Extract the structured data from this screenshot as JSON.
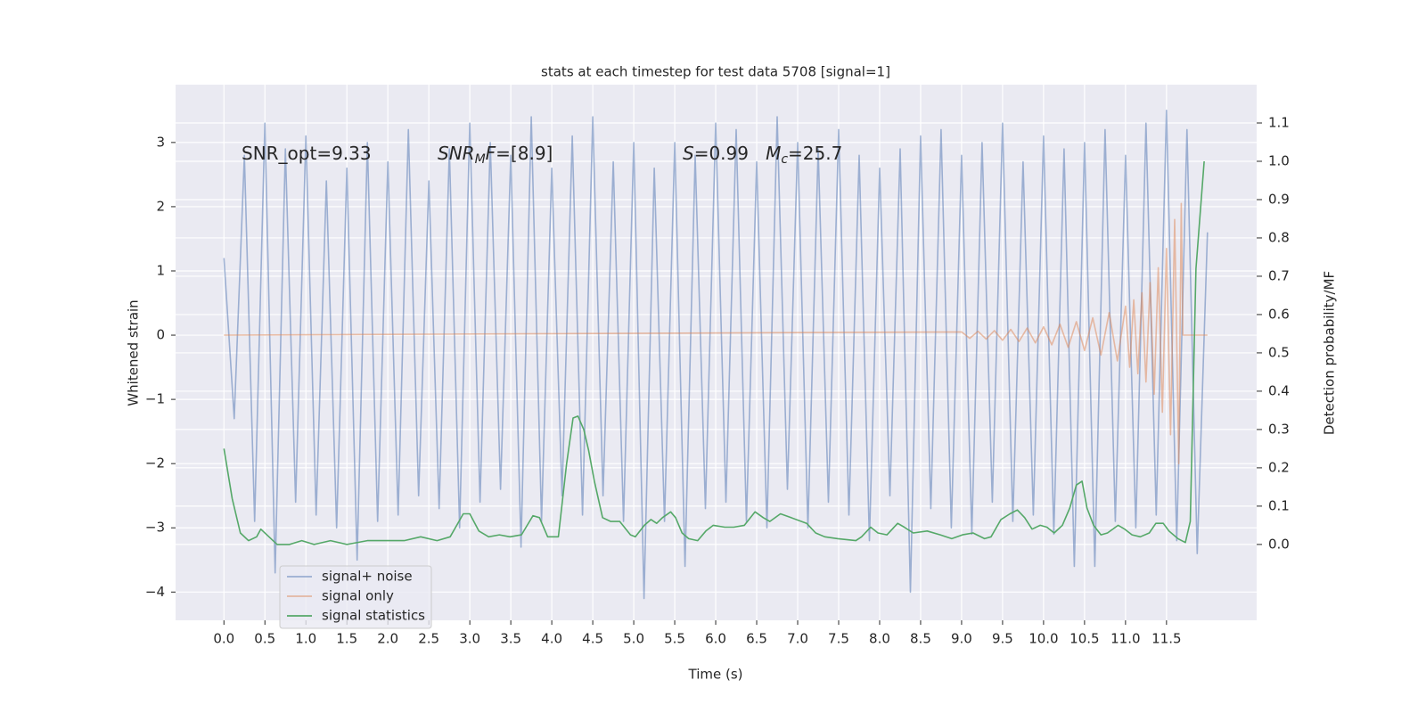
{
  "chart_data": {
    "type": "line",
    "title": "stats at each timestep for test data 5708 [signal=1]",
    "xlabel": "Time (s)",
    "ylabel": "Whitened strain",
    "y2label": "Detection probability/MF",
    "xlim": [
      -0.59,
      12.6
    ],
    "ylim": [
      -4.44,
      3.9
    ],
    "y2lim": [
      -0.198,
      1.2
    ],
    "grid": true,
    "legend": "lower left",
    "xticks": [
      {
        "value": 0,
        "label": "0.0"
      },
      {
        "value": 0.5,
        "label": "0.5"
      },
      {
        "value": 1,
        "label": "1.0"
      },
      {
        "value": 1.5,
        "label": "1.5"
      },
      {
        "value": 2,
        "label": "2.0"
      },
      {
        "value": 2.5,
        "label": "2.5"
      },
      {
        "value": 3,
        "label": "3.0"
      },
      {
        "value": 3.5,
        "label": "3.5"
      },
      {
        "value": 4,
        "label": "4.0"
      },
      {
        "value": 4.5,
        "label": "4.5"
      },
      {
        "value": 5,
        "label": "5.0"
      },
      {
        "value": 5.5,
        "label": "5.5"
      },
      {
        "value": 6,
        "label": "6.0"
      },
      {
        "value": 6.5,
        "label": "6.5"
      },
      {
        "value": 7,
        "label": "7.0"
      },
      {
        "value": 7.5,
        "label": "7.5"
      },
      {
        "value": 8,
        "label": "8.0"
      },
      {
        "value": 8.5,
        "label": "8.5"
      },
      {
        "value": 9,
        "label": "9.0"
      },
      {
        "value": 9.5,
        "label": "9.5"
      },
      {
        "value": 10,
        "label": "10.0"
      },
      {
        "value": 10.5,
        "label": "10.5"
      },
      {
        "value": 11,
        "label": "11.0"
      },
      {
        "value": 11.5,
        "label": "11.5"
      }
    ],
    "yticks": [
      {
        "value": -4,
        "label": "−4"
      },
      {
        "value": -3,
        "label": "−3"
      },
      {
        "value": -2,
        "label": "−2"
      },
      {
        "value": -1,
        "label": "−1"
      },
      0,
      1,
      2,
      3
    ],
    "y2ticks": [
      {
        "value": 0,
        "label": "0.0"
      },
      {
        "value": 0.1,
        "label": "0.1"
      },
      {
        "value": 0.2,
        "label": "0.2"
      },
      {
        "value": 0.3,
        "label": "0.3"
      },
      {
        "value": 0.4,
        "label": "0.4"
      },
      {
        "value": 0.5,
        "label": "0.5"
      },
      {
        "value": 0.6,
        "label": "0.6"
      },
      {
        "value": 0.7,
        "label": "0.7"
      },
      {
        "value": 0.8,
        "label": "0.8"
      },
      {
        "value": 0.9,
        "label": "0.9"
      },
      {
        "value": 1,
        "label": "1.0"
      },
      {
        "value": 1.1,
        "label": "1.1"
      }
    ],
    "annotations": [
      [
        {
          "text": "SNR_opt=9.33"
        }
      ],
      [
        {
          "text": "SNR",
          "italic": true
        },
        {
          "text": "M",
          "italic": true,
          "sub": true
        },
        {
          "text": "F",
          "italic": true
        },
        {
          "text": "=[8.9]"
        }
      ],
      [
        {
          "text": "S",
          "italic": true
        },
        {
          "text": "=0.99   "
        },
        {
          "text": "M",
          "italic": true
        },
        {
          "text": "c",
          "italic": true,
          "sub": true
        },
        {
          "text": "=25.7"
        }
      ]
    ],
    "series": [
      {
        "name": "signal+ noise",
        "color": "#4c72b0",
        "alpha": 0.5,
        "x": [
          0,
          0.125,
          0.25,
          0.375,
          0.5,
          0.625,
          0.75,
          0.875,
          1,
          1.125,
          1.25,
          1.375,
          1.5,
          1.625,
          1.75,
          1.875,
          2,
          2.125,
          2.25,
          2.375,
          2.5,
          2.625,
          2.75,
          2.875,
          3,
          3.125,
          3.25,
          3.375,
          3.5,
          3.625,
          3.75,
          3.875,
          4,
          4.125,
          4.25,
          4.375,
          4.5,
          4.625,
          4.75,
          4.875,
          5,
          5.125,
          5.25,
          5.375,
          5.5,
          5.625,
          5.75,
          5.875,
          6,
          6.125,
          6.25,
          6.375,
          6.5,
          6.625,
          6.75,
          6.875,
          7,
          7.125,
          7.25,
          7.375,
          7.5,
          7.625,
          7.75,
          7.875,
          8,
          8.125,
          8.25,
          8.375,
          8.5,
          8.625,
          8.75,
          8.875,
          9,
          9.125,
          9.25,
          9.375,
          9.5,
          9.625,
          9.75,
          9.875,
          10,
          10.125,
          10.25,
          10.375,
          10.5,
          10.625,
          10.75,
          10.875,
          11,
          11.125,
          11.25,
          11.375,
          11.5,
          11.625,
          11.75,
          11.875,
          12
        ],
        "values": [
          1.2,
          -1.3,
          2.8,
          -2.9,
          3.3,
          -3.7,
          2.9,
          -2.6,
          3.1,
          -2.8,
          2.4,
          -3.0,
          2.6,
          -3.5,
          3.0,
          -2.9,
          2.7,
          -2.8,
          3.2,
          -2.5,
          2.4,
          -2.7,
          2.9,
          -3.0,
          3.3,
          -2.6,
          3.0,
          -2.4,
          2.8,
          -3.3,
          3.4,
          -2.9,
          2.6,
          -2.5,
          3.1,
          -2.8,
          3.4,
          -2.5,
          2.7,
          -2.9,
          3.0,
          -4.1,
          2.6,
          -2.9,
          3.0,
          -3.6,
          2.8,
          -2.7,
          3.3,
          -2.6,
          3.2,
          -2.9,
          2.7,
          -3.0,
          3.4,
          -2.4,
          3.0,
          -3.0,
          2.9,
          -2.6,
          3.2,
          -2.8,
          2.8,
          -3.2,
          2.6,
          -2.5,
          2.9,
          -4.0,
          3.1,
          -2.7,
          3.2,
          -3.0,
          2.8,
          -3.1,
          3.0,
          -2.6,
          3.3,
          -2.9,
          2.7,
          -2.8,
          3.1,
          -3.1,
          2.9,
          -3.6,
          3.0,
          -3.6,
          3.2,
          -2.9,
          2.8,
          -3.0,
          3.3,
          -2.8,
          3.5,
          -3.2,
          3.2,
          -3.4,
          1.6
        ]
      },
      {
        "name": "signal only",
        "color": "#dd8452",
        "alpha": 0.5,
        "x": [
          0,
          9.0,
          9.1,
          9.2,
          9.3,
          9.4,
          9.5,
          9.6,
          9.7,
          9.8,
          9.9,
          10.0,
          10.1,
          10.2,
          10.3,
          10.4,
          10.5,
          10.6,
          10.7,
          10.8,
          10.9,
          11.0,
          11.05,
          11.1,
          11.15,
          11.2,
          11.25,
          11.3,
          11.35,
          11.4,
          11.45,
          11.5,
          11.55,
          11.6,
          11.65,
          11.68,
          11.7,
          12.0
        ],
        "values": [
          0,
          0.05,
          -0.05,
          0.06,
          -0.06,
          0.07,
          -0.08,
          0.09,
          -0.1,
          0.11,
          -0.12,
          0.13,
          -0.15,
          0.17,
          -0.19,
          0.21,
          -0.24,
          0.27,
          -0.31,
          0.35,
          -0.4,
          0.45,
          -0.5,
          0.55,
          -0.6,
          0.66,
          -0.73,
          0.82,
          -0.92,
          1.05,
          -1.2,
          1.35,
          -1.55,
          1.8,
          -2.0,
          2.05,
          0,
          0
        ]
      },
      {
        "name": "signal statistics",
        "color": "#55a868",
        "axis": "y2",
        "x": [
          0,
          0.1,
          0.2,
          0.3,
          0.4,
          0.45,
          0.55,
          0.65,
          0.8,
          0.95,
          1.1,
          1.3,
          1.5,
          1.75,
          2.0,
          2.2,
          2.4,
          2.6,
          2.76,
          2.92,
          3.0,
          3.11,
          3.23,
          3.36,
          3.49,
          3.63,
          3.77,
          3.85,
          3.95,
          4.08,
          4.18,
          4.26,
          4.32,
          4.39,
          4.45,
          4.52,
          4.62,
          4.72,
          4.83,
          4.96,
          5.02,
          5.13,
          5.21,
          5.28,
          5.35,
          5.45,
          5.51,
          5.59,
          5.67,
          5.78,
          5.88,
          5.97,
          6.11,
          6.22,
          6.35,
          6.48,
          6.58,
          6.66,
          6.79,
          6.92,
          7.11,
          7.22,
          7.33,
          7.49,
          7.71,
          7.78,
          7.89,
          7.98,
          8.09,
          8.22,
          8.3,
          8.41,
          8.58,
          8.74,
          8.88,
          9.01,
          9.14,
          9.28,
          9.36,
          9.48,
          9.59,
          9.68,
          9.77,
          9.86,
          9.96,
          10.04,
          10.13,
          10.23,
          10.32,
          10.4,
          10.47,
          10.53,
          10.61,
          10.7,
          10.78,
          10.91,
          10.99,
          11.08,
          11.18,
          11.29,
          11.37,
          11.46,
          11.53,
          11.64,
          11.73,
          11.79,
          11.86,
          11.96
        ],
        "values": [
          0.25,
          0.12,
          0.03,
          0.01,
          0.02,
          0.04,
          0.02,
          0.0,
          0.0,
          0.01,
          0.0,
          0.01,
          0.0,
          0.01,
          0.01,
          0.01,
          0.02,
          0.01,
          0.02,
          0.08,
          0.08,
          0.035,
          0.02,
          0.025,
          0.02,
          0.025,
          0.075,
          0.07,
          0.02,
          0.02,
          0.21,
          0.33,
          0.335,
          0.3,
          0.245,
          0.165,
          0.07,
          0.06,
          0.06,
          0.025,
          0.02,
          0.05,
          0.065,
          0.055,
          0.07,
          0.085,
          0.07,
          0.03,
          0.015,
          0.01,
          0.035,
          0.05,
          0.045,
          0.045,
          0.05,
          0.085,
          0.07,
          0.06,
          0.08,
          0.07,
          0.055,
          0.03,
          0.02,
          0.015,
          0.01,
          0.02,
          0.045,
          0.03,
          0.025,
          0.055,
          0.045,
          0.03,
          0.035,
          0.025,
          0.015,
          0.025,
          0.03,
          0.015,
          0.02,
          0.065,
          0.08,
          0.09,
          0.07,
          0.04,
          0.05,
          0.045,
          0.03,
          0.05,
          0.095,
          0.155,
          0.165,
          0.095,
          0.05,
          0.025,
          0.03,
          0.05,
          0.04,
          0.025,
          0.02,
          0.03,
          0.055,
          0.055,
          0.035,
          0.015,
          0.005,
          0.06,
          0.72,
          1.0
        ]
      }
    ]
  }
}
